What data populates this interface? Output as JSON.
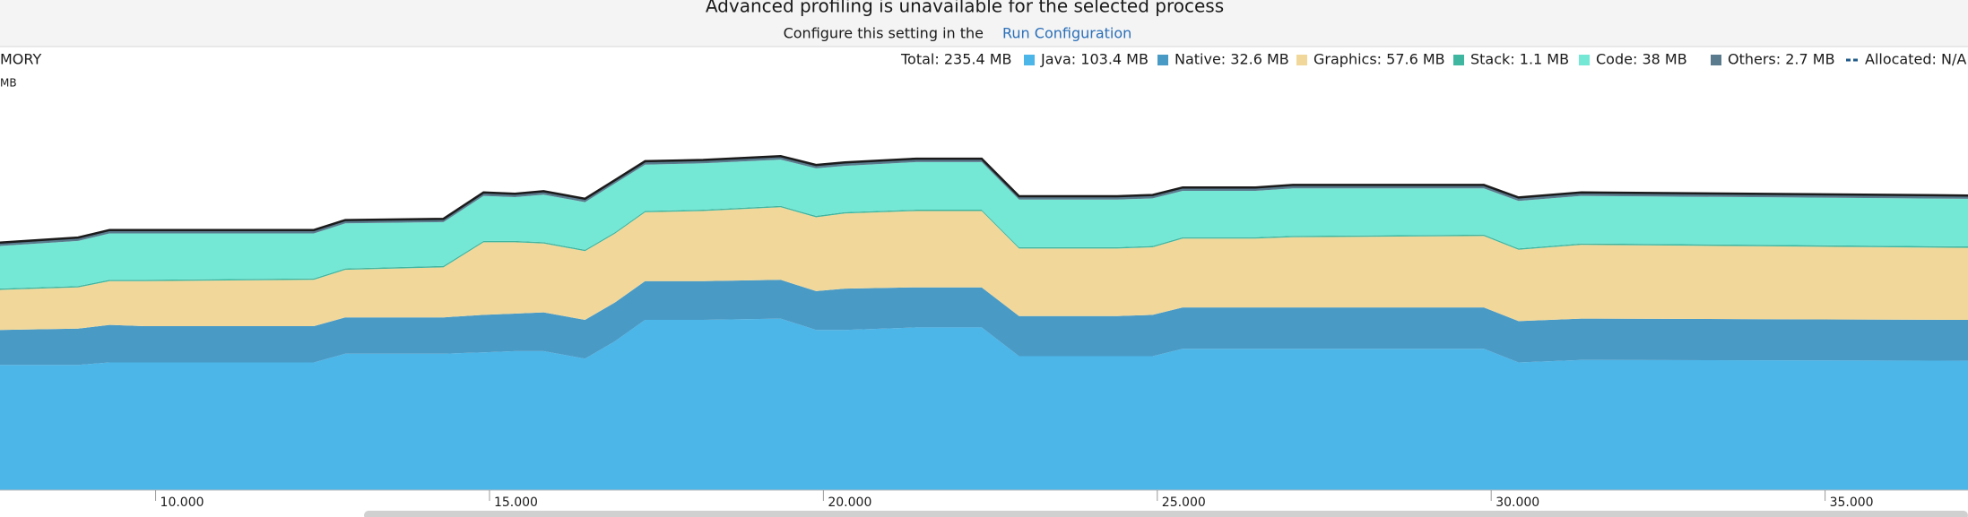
{
  "header": {
    "title": "Advanced profiling is unavailable for the selected process",
    "subtitle": "Configure this setting in the",
    "link": "Run Configuration"
  },
  "chart_data": {
    "type": "stacked_area",
    "label": "MORY",
    "unit_label": "MB",
    "total_label": "Total: 235.4 MB",
    "allocated_label": "Allocated: N/A",
    "x": [
      7.67,
      8.84,
      9.31,
      9.83,
      12.37,
      12.84,
      14.31,
      14.91,
      15.38,
      15.81,
      16.43,
      16.88,
      17.33,
      18.2,
      19.36,
      19.89,
      20.32,
      21.39,
      22.37,
      22.93,
      24.4,
      24.93,
      25.38,
      26.47,
      27.03,
      29.89,
      30.41,
      31.35,
      37.14
    ],
    "series": [
      {
        "name": "Java: 103.4 MB",
        "color": "#4cb6e8",
        "values": [
          100,
          100,
          102,
          102,
          102,
          109,
          109,
          110,
          111,
          111,
          105,
          119,
          136,
          136,
          137,
          128,
          128,
          130,
          130,
          107,
          107,
          107,
          113,
          113,
          113,
          113,
          102,
          104,
          103.4
        ]
      },
      {
        "name": "Native: 32.6 MB",
        "color": "#4a9ac6",
        "values": [
          28,
          29,
          30,
          29,
          29,
          29,
          29,
          30,
          30,
          31,
          31,
          31,
          31,
          31,
          31,
          31,
          33,
          32,
          32,
          32,
          32,
          33,
          33,
          33,
          33,
          33,
          33,
          33,
          32.6
        ]
      },
      {
        "name": "Graphics: 57.6 MB",
        "color": "#f1d89a",
        "values": [
          32,
          33,
          35,
          36,
          37,
          38,
          40,
          58,
          57,
          55,
          55,
          55,
          55,
          56,
          58,
          59,
          60,
          61,
          61,
          54,
          54,
          54,
          55,
          55,
          56,
          57,
          57,
          59,
          57.6
        ]
      },
      {
        "name": "Stack: 1.1 MB",
        "color": "#3fb6a0",
        "values": [
          1.1,
          1.1,
          1.1,
          1.1,
          1.1,
          1.1,
          1.1,
          1.1,
          1.1,
          1.1,
          1.1,
          1.1,
          1.1,
          1.1,
          1.1,
          1.1,
          1.1,
          1.1,
          1.1,
          1.1,
          1.1,
          1.1,
          1.1,
          1.1,
          1.1,
          1.1,
          1.1,
          1.1,
          1.1
        ]
      },
      {
        "name": "Code: 38 MB",
        "color": "#74e8d5",
        "values": [
          34,
          36,
          37,
          37,
          36,
          36,
          35,
          36,
          35,
          38,
          38,
          39,
          37,
          37,
          37,
          38,
          37,
          38,
          38,
          38,
          38,
          38,
          37,
          37,
          38,
          37,
          38,
          38,
          38
        ]
      },
      {
        "name": "Others: 2.7 MB",
        "color": "#5a7b8d",
        "values": [
          2.7,
          2.7,
          2.7,
          2.7,
          2.7,
          2.7,
          2.7,
          2.7,
          2.7,
          2.7,
          2.7,
          2.7,
          2.7,
          2.7,
          2.7,
          2.7,
          2.7,
          2.7,
          2.7,
          2.7,
          2.7,
          2.7,
          2.7,
          2.7,
          2.7,
          2.7,
          2.7,
          2.7,
          2.7
        ]
      }
    ],
    "xlim": [
      7.67,
      37.14
    ],
    "ylim": [
      0,
      320
    ],
    "xticks": [
      {
        "value": 10,
        "label": "10.000"
      },
      {
        "value": 15,
        "label": "15.000"
      },
      {
        "value": 20,
        "label": "20.000"
      },
      {
        "value": 25,
        "label": "25.000"
      },
      {
        "value": 30,
        "label": "30.000"
      },
      {
        "value": 35,
        "label": "35.000"
      }
    ]
  }
}
